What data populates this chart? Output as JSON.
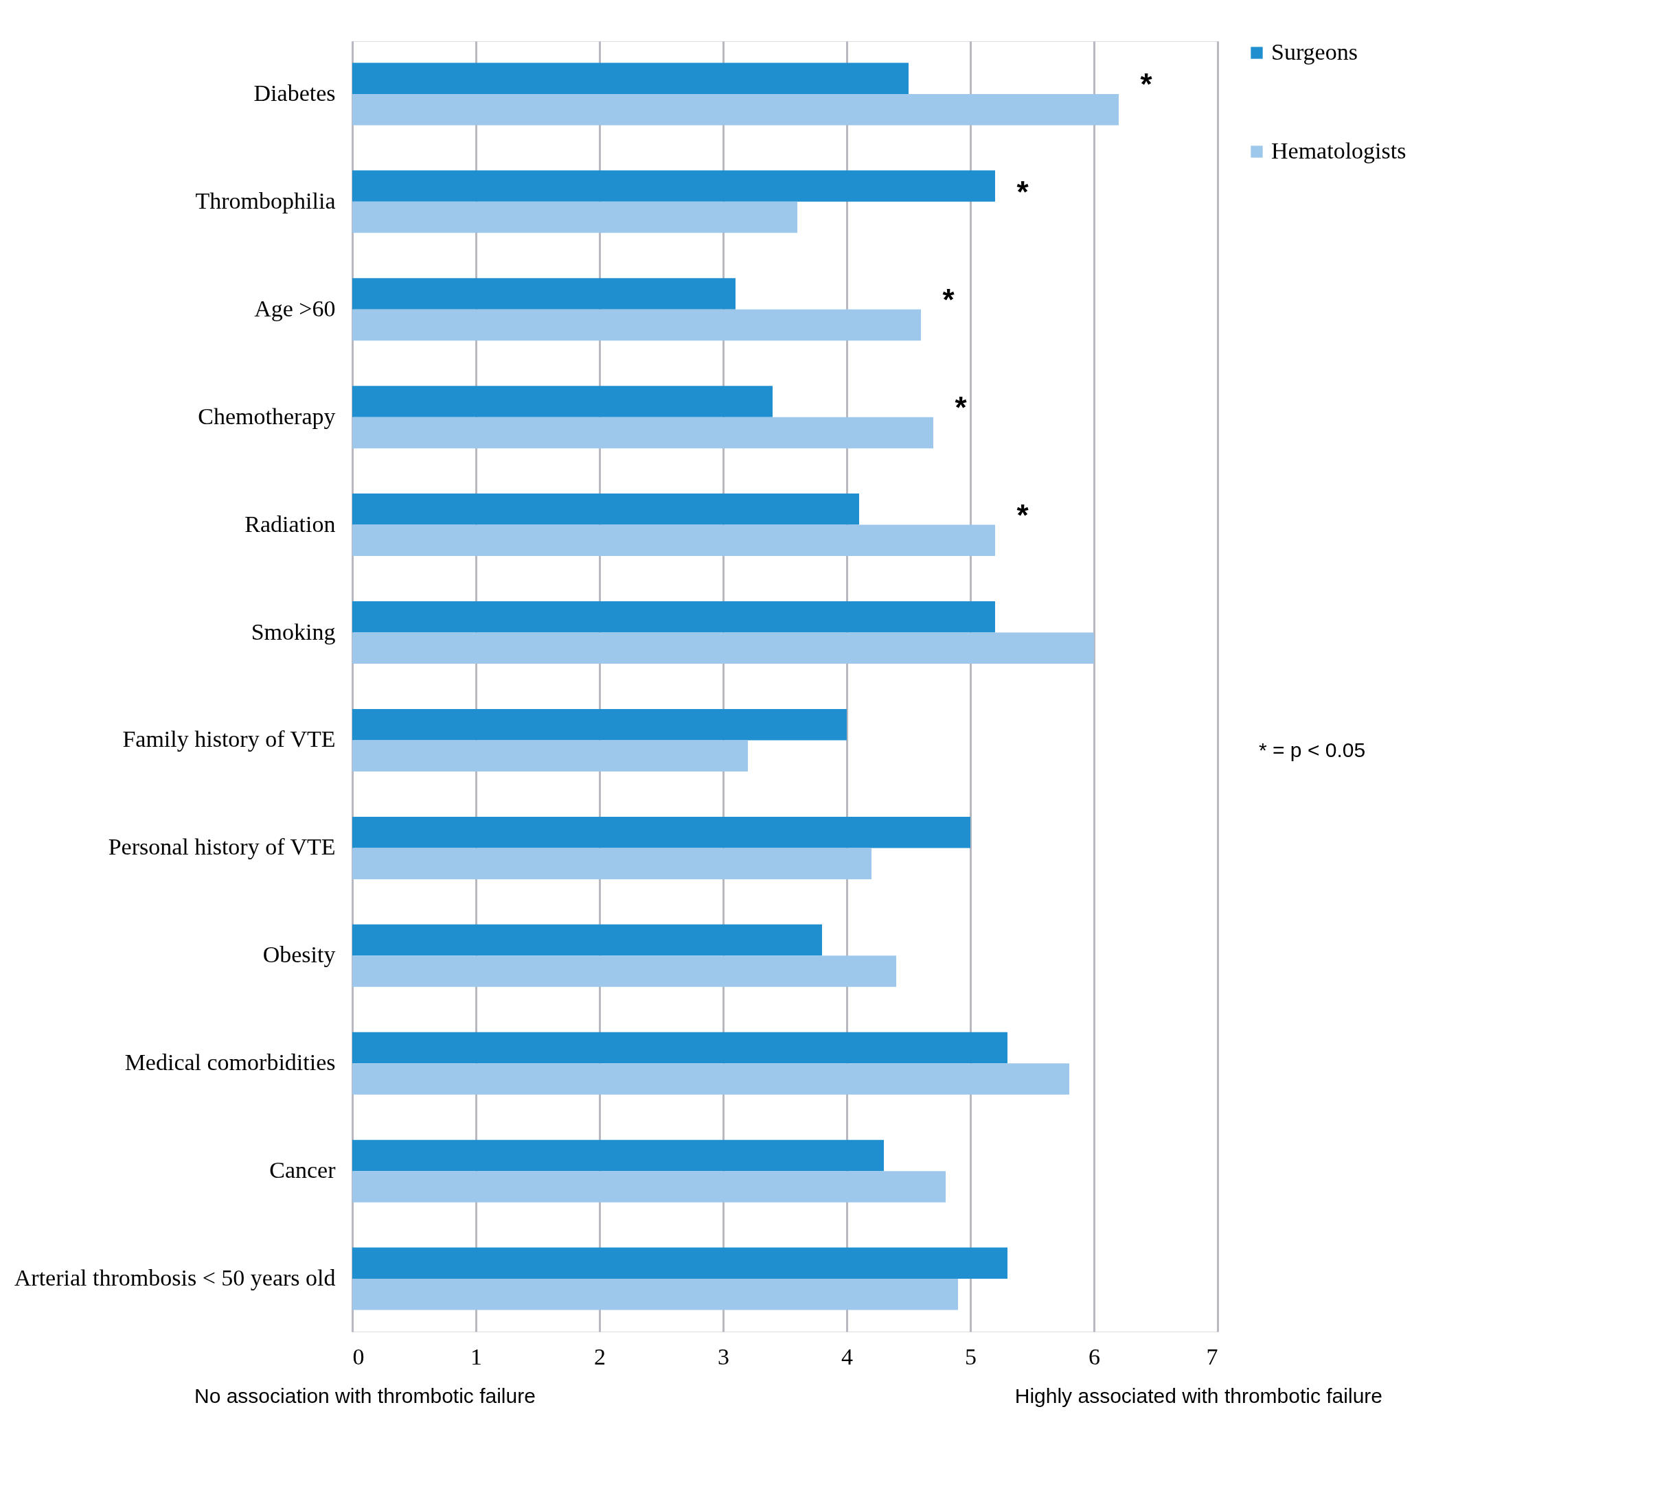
{
  "chart_data": {
    "type": "bar",
    "orientation": "horizontal",
    "categories": [
      "Diabetes",
      "Thrombophilia",
      "Age >60",
      "Chemotherapy",
      "Radiation",
      "Smoking",
      "Family history of VTE",
      "Personal history of VTE",
      "Obesity",
      "Medical comorbidities",
      "Cancer",
      "Arterial thrombosis < 50 years old"
    ],
    "series": [
      {
        "name": "Surgeons",
        "color": "#1f8fd0",
        "values": [
          4.5,
          5.2,
          3.1,
          3.4,
          4.1,
          5.2,
          4.0,
          5.0,
          3.8,
          5.3,
          4.3,
          5.3
        ]
      },
      {
        "name": "Hematologists",
        "color": "#9dc8ec",
        "values": [
          6.2,
          3.6,
          4.6,
          4.7,
          5.2,
          6.0,
          3.2,
          4.2,
          4.4,
          5.8,
          4.8,
          4.9
        ]
      }
    ],
    "xlim": [
      0,
      7
    ],
    "xticks": [
      0,
      1,
      2,
      3,
      4,
      5,
      6,
      7
    ],
    "grid": "x",
    "legend": "right",
    "annotations": [
      {
        "text": "*",
        "x": 6.2,
        "y": "Diabetes"
      },
      {
        "text": "*",
        "x": 5.2,
        "y": "Thrombophilia"
      },
      {
        "text": "*",
        "x": 4.6,
        "y": "Age >60"
      },
      {
        "text": "*",
        "x": 4.7,
        "y": "Chemotherapy"
      },
      {
        "text": "*",
        "x": 5.2,
        "y": "Radiation"
      },
      "* = p < 0.05",
      "No association with thrombotic failure",
      "Highly associated with thrombotic failure"
    ]
  }
}
